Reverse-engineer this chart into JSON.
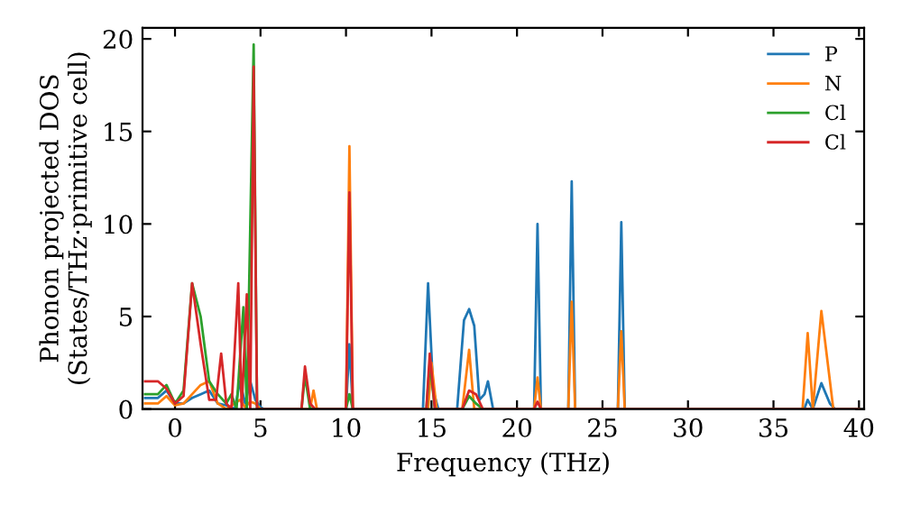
{
  "chart_data": {
    "type": "line",
    "xlabel": "Frequency (THz)",
    "ylabel": "Phonon projected DOS\n(States/THz·primitive cell)",
    "xlim": [
      -1.9,
      40.3
    ],
    "ylim": [
      0,
      20.6
    ],
    "xticks": [
      0,
      5,
      10,
      15,
      20,
      25,
      30,
      35,
      40
    ],
    "yticks": [
      0,
      5,
      10,
      15,
      20
    ],
    "grid": false,
    "legend": "top right",
    "line_style": "solid",
    "marker": "none",
    "series": [
      {
        "name": "P",
        "color": "#1f77b4",
        "x": [
          -1.75,
          -1,
          -0.5,
          0,
          0.5,
          1,
          1.5,
          2,
          2.5,
          3,
          3.5,
          3.8,
          4.1,
          4.4,
          4.7,
          5,
          5.2,
          10,
          10.2,
          10.4,
          14.5,
          14.8,
          15.1,
          15.4,
          16.5,
          16.9,
          17.2,
          17.5,
          17.8,
          18.1,
          18.3,
          18.6,
          21,
          21.2,
          21.4,
          23,
          23.2,
          23.4,
          25.9,
          26.1,
          26.3,
          36.8,
          37,
          37.3,
          37.8,
          38.3,
          38.6,
          40
        ],
        "values": [
          0.6,
          0.6,
          1.0,
          0.3,
          0.3,
          0.6,
          0.8,
          1.0,
          0.3,
          0.2,
          0,
          1.5,
          0.3,
          1.5,
          0.5,
          0.1,
          0,
          0,
          3.5,
          0,
          0,
          6.8,
          1,
          0,
          0,
          4.8,
          5.4,
          4.5,
          0.5,
          0.8,
          1.5,
          0,
          0,
          10,
          0,
          0,
          12.3,
          0,
          0,
          10.1,
          0,
          0,
          0.5,
          0,
          1.4,
          0.3,
          0,
          0
        ]
      },
      {
        "name": "N",
        "color": "#ff7f0e",
        "x": [
          -1.75,
          -1,
          -0.5,
          0,
          0.5,
          1,
          1.5,
          2,
          2.5,
          3,
          3.8,
          4.1,
          4.4,
          4.7,
          5,
          7.9,
          8.1,
          8.3,
          10,
          10.2,
          10.4,
          14.8,
          15,
          15.3,
          16.8,
          17.2,
          17.5,
          21,
          21.2,
          21.4,
          23,
          23.2,
          23.4,
          25.9,
          26.1,
          26.3,
          36.7,
          37,
          37.3,
          37.8,
          38.5,
          40
        ],
        "values": [
          0.3,
          0.3,
          0.7,
          0.2,
          0.3,
          0.8,
          1.3,
          1.5,
          0.3,
          0,
          0.5,
          0.1,
          0.4,
          0.3,
          0,
          0,
          1.0,
          0,
          0,
          14.2,
          0,
          0,
          2.5,
          0,
          0,
          3.2,
          0,
          0,
          1.7,
          0,
          0,
          5.8,
          0,
          0,
          4.2,
          0,
          0,
          4.1,
          0,
          5.3,
          0,
          0
        ]
      },
      {
        "name": "Cl",
        "color": "#2ca02c",
        "x": [
          -1.75,
          -1,
          -0.5,
          0,
          0.5,
          1,
          1.5,
          2,
          2.5,
          3,
          3.3,
          3.6,
          4.0,
          4.2,
          4.6,
          4.8,
          7.4,
          7.6,
          7.9,
          10,
          10.2,
          10.4,
          14.7,
          14.9,
          15.2,
          16.8,
          17.2,
          17.6,
          18,
          40
        ],
        "values": [
          0.8,
          0.8,
          1.3,
          0.3,
          1.0,
          6.8,
          5.0,
          1.5,
          0.8,
          0.3,
          0.8,
          0,
          5.5,
          0,
          19.7,
          0,
          0,
          1.8,
          0,
          0,
          0.8,
          0,
          0,
          2.5,
          0,
          0,
          0.7,
          0.3,
          0,
          0
        ]
      },
      {
        "name": "Cl",
        "color": "#d62728",
        "x": [
          -1.75,
          -1,
          -0.5,
          0,
          0.5,
          1,
          1.5,
          2,
          2.4,
          2.7,
          3,
          3.3,
          3.7,
          3.9,
          4.2,
          4.4,
          4.6,
          4.8,
          7.4,
          7.6,
          7.9,
          8.2,
          10,
          10.2,
          10.4,
          14.7,
          14.9,
          15.2,
          16.8,
          17.2,
          17.6,
          18,
          21,
          21.2,
          21.4,
          40
        ],
        "values": [
          1.5,
          1.5,
          1.1,
          0.3,
          0.7,
          6.8,
          3.5,
          0.5,
          0.5,
          3.0,
          0.3,
          0,
          6.8,
          0,
          6.2,
          0,
          18.5,
          0,
          0,
          2.3,
          0.3,
          0,
          0,
          11.7,
          0,
          0,
          3.0,
          0,
          0,
          1.0,
          0.8,
          0,
          0,
          0.4,
          0,
          0
        ]
      }
    ]
  }
}
